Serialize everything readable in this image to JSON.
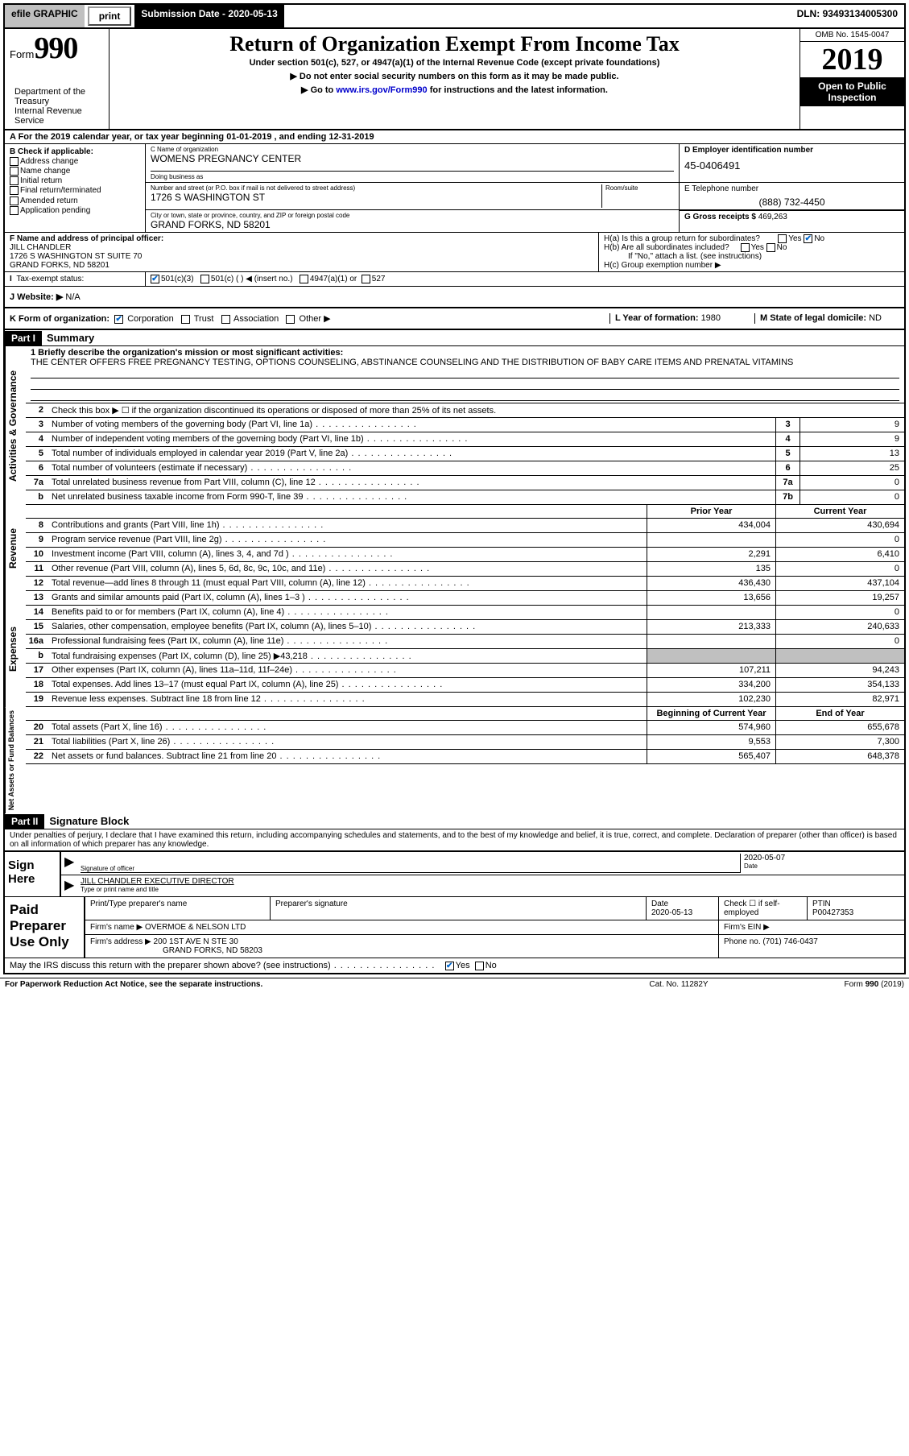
{
  "topbar": {
    "efile": "efile GRAPHIC",
    "print": "print",
    "submission_label": "Submission Date - ",
    "submission_date": "2020-05-13",
    "dln_label": "DLN: ",
    "dln": "93493134005300"
  },
  "header": {
    "form_label": "Form",
    "form_num": "990",
    "dept1": "Department of the Treasury",
    "dept2": "Internal Revenue Service",
    "title": "Return of Organization Exempt From Income Tax",
    "subtitle": "Under section 501(c), 527, or 4947(a)(1) of the Internal Revenue Code (except private foundations)",
    "arrow1": "▶ Do not enter social security numbers on this form as it may be made public.",
    "arrow2_pre": "▶ Go to ",
    "arrow2_link": "www.irs.gov/Form990",
    "arrow2_post": " for instructions and the latest information.",
    "omb": "OMB No. 1545-0047",
    "year": "2019",
    "open_public": "Open to Public Inspection"
  },
  "secA": {
    "text": "A For the 2019 calendar year, or tax year beginning 01-01-2019    , and ending 12-31-2019"
  },
  "colB": {
    "label": "B Check if applicable:",
    "opts": [
      "Address change",
      "Name change",
      "Initial return",
      "Final return/terminated",
      "Amended return",
      "Application pending"
    ]
  },
  "colC": {
    "name_lbl": "C Name of organization",
    "name": "WOMENS PREGNANCY CENTER",
    "dba_lbl": "Doing business as",
    "dba": "",
    "street_lbl": "Number and street (or P.O. box if mail is not delivered to street address)",
    "room_lbl": "Room/suite",
    "street": "1726 S WASHINGTON ST",
    "city_lbl": "City or town, state or province, country, and ZIP or foreign postal code",
    "city": "GRAND FORKS, ND  58201"
  },
  "colD": {
    "ein_lbl": "D Employer identification number",
    "ein": "45-0406491",
    "phone_lbl": "E Telephone number",
    "phone": "(888) 732-4450",
    "gross_lbl": "G Gross receipts $ ",
    "gross": "469,263"
  },
  "secF": {
    "lbl": "F  Name and address of principal officer:",
    "name": "JILL CHANDLER",
    "addr1": "1726 S WASHINGTON ST SUITE 70",
    "addr2": "GRAND FORKS, ND  58201"
  },
  "secH": {
    "ha": "H(a)  Is this a group return for subordinates?",
    "hb": "H(b)  Are all subordinates included?",
    "hb_note": "If \"No,\" attach a list. (see instructions)",
    "hc": "H(c)  Group exemption number ▶"
  },
  "secI": {
    "lbl": "Tax-exempt status:",
    "opts": [
      "501(c)(3)",
      "501(c) (   ) ◀ (insert no.)",
      "4947(a)(1) or",
      "527"
    ]
  },
  "secJ": {
    "lbl": "J  Website: ▶ ",
    "val": "N/A"
  },
  "secK": {
    "lbl": "K Form of organization:",
    "opts": [
      "Corporation",
      "Trust",
      "Association",
      "Other ▶"
    ]
  },
  "secL": {
    "lbl": "L Year of formation: ",
    "val": "1980"
  },
  "secM": {
    "lbl": "M State of legal domicile: ",
    "val": "ND"
  },
  "part1": {
    "num": "Part I",
    "title": "Summary"
  },
  "part2": {
    "num": "Part II",
    "title": "Signature Block"
  },
  "mission": {
    "lbl": "1  Briefly describe the organization's mission or most significant activities:",
    "text": "THE CENTER OFFERS FREE PREGNANCY TESTING, OPTIONS COUNSELING, ABSTINANCE COUNSELING AND THE DISTRIBUTION OF BABY CARE ITEMS AND PRENATAL VITAMINS"
  },
  "vtabs": {
    "act_gov": "Activities & Governance",
    "rev": "Revenue",
    "exp": "Expenses",
    "nab": "Net Assets or Fund Balances"
  },
  "gov_lines": [
    {
      "n": "2",
      "d": "Check this box ▶ ☐  if the organization discontinued its operations or disposed of more than 25% of its net assets.",
      "box": "",
      "v": ""
    },
    {
      "n": "3",
      "d": "Number of voting members of the governing body (Part VI, line 1a)",
      "box": "3",
      "v": "9"
    },
    {
      "n": "4",
      "d": "Number of independent voting members of the governing body (Part VI, line 1b)",
      "box": "4",
      "v": "9"
    },
    {
      "n": "5",
      "d": "Total number of individuals employed in calendar year 2019 (Part V, line 2a)",
      "box": "5",
      "v": "13"
    },
    {
      "n": "6",
      "d": "Total number of volunteers (estimate if necessary)",
      "box": "6",
      "v": "25"
    },
    {
      "n": "7a",
      "d": "Total unrelated business revenue from Part VIII, column (C), line 12",
      "box": "7a",
      "v": "0"
    },
    {
      "n": "b",
      "d": "Net unrelated business taxable income from Form 990-T, line 39",
      "box": "7b",
      "v": "0"
    }
  ],
  "col_hdrs": {
    "prior": "Prior Year",
    "current": "Current Year",
    "boy": "Beginning of Current Year",
    "eoy": "End of Year"
  },
  "rev_lines": [
    {
      "n": "8",
      "d": "Contributions and grants (Part VIII, line 1h)",
      "p": "434,004",
      "c": "430,694"
    },
    {
      "n": "9",
      "d": "Program service revenue (Part VIII, line 2g)",
      "p": "",
      "c": "0"
    },
    {
      "n": "10",
      "d": "Investment income (Part VIII, column (A), lines 3, 4, and 7d )",
      "p": "2,291",
      "c": "6,410"
    },
    {
      "n": "11",
      "d": "Other revenue (Part VIII, column (A), lines 5, 6d, 8c, 9c, 10c, and 11e)",
      "p": "135",
      "c": "0"
    },
    {
      "n": "12",
      "d": "Total revenue—add lines 8 through 11 (must equal Part VIII, column (A), line 12)",
      "p": "436,430",
      "c": "437,104"
    }
  ],
  "exp_lines": [
    {
      "n": "13",
      "d": "Grants and similar amounts paid (Part IX, column (A), lines 1–3 )",
      "p": "13,656",
      "c": "19,257"
    },
    {
      "n": "14",
      "d": "Benefits paid to or for members (Part IX, column (A), line 4)",
      "p": "",
      "c": "0"
    },
    {
      "n": "15",
      "d": "Salaries, other compensation, employee benefits (Part IX, column (A), lines 5–10)",
      "p": "213,333",
      "c": "240,633"
    },
    {
      "n": "16a",
      "d": "Professional fundraising fees (Part IX, column (A), line 11e)",
      "p": "",
      "c": "0"
    },
    {
      "n": "b",
      "d": "Total fundraising expenses (Part IX, column (D), line 25) ▶43,218",
      "p": "grey",
      "c": "grey"
    },
    {
      "n": "17",
      "d": "Other expenses (Part IX, column (A), lines 11a–11d, 11f–24e)",
      "p": "107,211",
      "c": "94,243"
    },
    {
      "n": "18",
      "d": "Total expenses. Add lines 13–17 (must equal Part IX, column (A), line 25)",
      "p": "334,200",
      "c": "354,133"
    },
    {
      "n": "19",
      "d": "Revenue less expenses. Subtract line 18 from line 12",
      "p": "102,230",
      "c": "82,971"
    }
  ],
  "nab_lines": [
    {
      "n": "20",
      "d": "Total assets (Part X, line 16)",
      "p": "574,960",
      "c": "655,678"
    },
    {
      "n": "21",
      "d": "Total liabilities (Part X, line 26)",
      "p": "9,553",
      "c": "7,300"
    },
    {
      "n": "22",
      "d": "Net assets or fund balances. Subtract line 21 from line 20",
      "p": "565,407",
      "c": "648,378"
    }
  ],
  "sig": {
    "penalties": "Under penalties of perjury, I declare that I have examined this return, including accompanying schedules and statements, and to the best of my knowledge and belief, it is true, correct, and complete. Declaration of preparer (other than officer) is based on all information of which preparer has any knowledge.",
    "sign_here": "Sign Here",
    "sig_officer": "Signature of officer",
    "date_lbl": "Date",
    "date": "2020-05-07",
    "name_title": "JILL CHANDLER  EXECUTIVE DIRECTOR",
    "type_name": "Type or print name and title",
    "paid_prep": "Paid Preparer Use Only",
    "prep_name_lbl": "Print/Type preparer's name",
    "prep_sig_lbl": "Preparer's signature",
    "prep_date_lbl": "Date",
    "prep_date": "2020-05-13",
    "self_emp": "Check ☐ if self-employed",
    "ptin_lbl": "PTIN",
    "ptin": "P00427353",
    "firm_name_lbl": "Firm's name    ▶ ",
    "firm_name": "OVERMOE & NELSON LTD",
    "firm_ein_lbl": "Firm's EIN ▶",
    "firm_addr_lbl": "Firm's address ▶ ",
    "firm_addr1": "200 1ST AVE N STE 30",
    "firm_addr2": "GRAND FORKS, ND  58203",
    "phone_lbl": "Phone no. ",
    "phone": "(701) 746-0437",
    "discuss": "May the IRS discuss this return with the preparer shown above? (see instructions)"
  },
  "footer": {
    "pra": "For Paperwork Reduction Act Notice, see the separate instructions.",
    "cat": "Cat. No. 11282Y",
    "form": "Form 990 (2019)"
  },
  "colors": {
    "black": "#000000",
    "grey": "#c0c0c0",
    "link": "#0000cc",
    "check": "#0066cc"
  }
}
